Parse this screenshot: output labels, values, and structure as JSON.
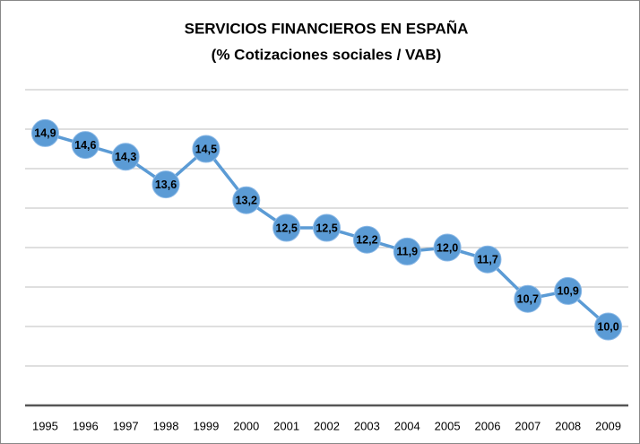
{
  "chart_data": {
    "type": "line",
    "title": "SERVICIOS FINANCIEROS EN ESPAÑA",
    "subtitle": "(% Cotizaciones sociales / VAB)",
    "categories": [
      "1995",
      "1996",
      "1997",
      "1998",
      "1999",
      "2000",
      "2001",
      "2002",
      "2003",
      "2004",
      "2005",
      "2006",
      "2007",
      "2008",
      "2009"
    ],
    "values": [
      14.9,
      14.6,
      14.3,
      13.6,
      14.5,
      13.2,
      12.5,
      12.5,
      12.2,
      11.9,
      12.0,
      11.7,
      10.7,
      10.9,
      10.0
    ],
    "value_labels": [
      "14,9",
      "14,6",
      "14,3",
      "13,6",
      "14,5",
      "13,2",
      "12,5",
      "12,5",
      "12,2",
      "11,9",
      "12,0",
      "11,7",
      "10,7",
      "10,9",
      "10,0"
    ],
    "color": "#5b9bd5",
    "ylim": [
      8,
      16
    ],
    "yticks": [
      8,
      9,
      10,
      11,
      12,
      13,
      14,
      15,
      16
    ],
    "grid": true
  }
}
